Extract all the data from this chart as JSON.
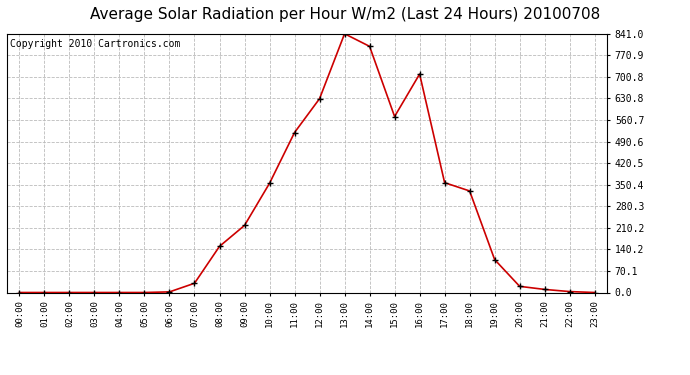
{
  "title": "Average Solar Radiation per Hour W/m2 (Last 24 Hours) 20100708",
  "copyright": "Copyright 2010 Cartronics.com",
  "hours": [
    "00:00",
    "01:00",
    "02:00",
    "03:00",
    "04:00",
    "05:00",
    "06:00",
    "07:00",
    "08:00",
    "09:00",
    "10:00",
    "11:00",
    "12:00",
    "13:00",
    "14:00",
    "15:00",
    "16:00",
    "17:00",
    "18:00",
    "19:00",
    "20:00",
    "21:00",
    "22:00",
    "23:00"
  ],
  "values": [
    0.0,
    0.0,
    0.0,
    0.0,
    0.0,
    0.0,
    2.0,
    30.0,
    150.0,
    218.0,
    355.0,
    520.0,
    630.0,
    841.0,
    800.0,
    572.0,
    710.0,
    357.0,
    330.0,
    107.0,
    20.0,
    10.0,
    3.0,
    0.0
  ],
  "line_color": "#cc0000",
  "marker_color": "#000000",
  "background_color": "#ffffff",
  "plot_bg_color": "#ffffff",
  "grid_color": "#bbbbbb",
  "yticks": [
    0.0,
    70.1,
    140.2,
    210.2,
    280.3,
    350.4,
    420.5,
    490.6,
    560.7,
    630.8,
    700.8,
    770.9,
    841.0
  ],
  "ymax": 841.0,
  "ymin": 0.0,
  "title_fontsize": 11,
  "copyright_fontsize": 7
}
